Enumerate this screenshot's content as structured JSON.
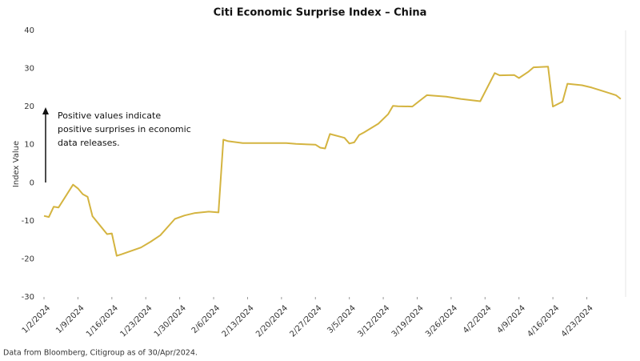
{
  "chart_data": {
    "type": "line",
    "title": "Citi Economic Surprise Index – China",
    "y_label": "Index Value",
    "annotation": [
      "Positive values indicate",
      "positive surprises in economic",
      "data releases."
    ],
    "source": "Data from Bloomberg, Citigroup as of 30/Apr/2024.",
    "x": [
      "1/2/2024",
      "1/3/2024",
      "1/4/2024",
      "1/5/2024",
      "1/8/2024",
      "1/9/2024",
      "1/10/2024",
      "1/11/2024",
      "1/12/2024",
      "1/15/2024",
      "1/16/2024",
      "1/17/2024",
      "1/18/2024",
      "1/22/2024",
      "1/24/2024",
      "1/26/2024",
      "1/29/2024",
      "1/31/2024",
      "2/2/2024",
      "2/5/2024",
      "2/7/2024",
      "2/8/2024",
      "2/9/2024",
      "2/12/2024",
      "2/16/2024",
      "2/21/2024",
      "2/23/2024",
      "2/27/2024",
      "2/28/2024",
      "2/29/2024",
      "3/1/2024",
      "3/4/2024",
      "3/5/2024",
      "3/6/2024",
      "3/7/2024",
      "3/8/2024",
      "3/11/2024",
      "3/13/2024",
      "3/14/2024",
      "3/15/2024",
      "3/18/2024",
      "3/20/2024",
      "3/21/2024",
      "3/25/2024",
      "3/28/2024",
      "4/1/2024",
      "4/4/2024",
      "4/5/2024",
      "4/8/2024",
      "4/9/2024",
      "4/11/2024",
      "4/12/2024",
      "4/15/2024",
      "4/16/2024",
      "4/18/2024",
      "4/19/2024",
      "4/22/2024",
      "4/24/2024",
      "4/26/2024",
      "4/29/2024",
      "4/30/2024"
    ],
    "series": [
      {
        "color": "#d4b440",
        "values": [
          -8.7,
          -9,
          -6.3,
          -6.5,
          -0.5,
          -1.5,
          -3,
          -3.7,
          -8.8,
          -13.5,
          -13.3,
          -19.2,
          -18.8,
          -17,
          -15.5,
          -13.8,
          -9.5,
          -8.6,
          -8,
          -7.6,
          -7.8,
          11.3,
          10.9,
          10.4,
          10.4,
          10.4,
          10.2,
          10.0,
          9.2,
          9.0,
          12.8,
          11.8,
          10.3,
          10.6,
          12.5,
          13.2,
          15.5,
          18,
          20.2,
          20.1,
          20.0,
          22,
          23,
          22.6,
          22.0,
          21.4,
          28.8,
          28.2,
          28.3,
          27.5,
          29.2,
          30.3,
          30.5,
          20.0,
          21.3,
          26.0,
          25.6,
          25,
          24.2,
          23.0,
          22.0
        ]
      }
    ],
    "xlim": [
      "1/2/2024",
      "5/1/2024"
    ],
    "xticks": [
      "1/2/2024",
      "1/9/2024",
      "1/16/2024",
      "1/23/2024",
      "1/30/2024",
      "2/6/2024",
      "2/13/2024",
      "2/20/2024",
      "2/27/2024",
      "3/5/2024",
      "3/12/2024",
      "3/19/2024",
      "3/26/2024",
      "4/2/2024",
      "4/9/2024",
      "4/16/2024",
      "4/23/2024"
    ],
    "ylim": [
      -30,
      40
    ],
    "yticks": [
      -30,
      -20,
      -10,
      0,
      10,
      20,
      30,
      40
    ],
    "grid": false
  }
}
